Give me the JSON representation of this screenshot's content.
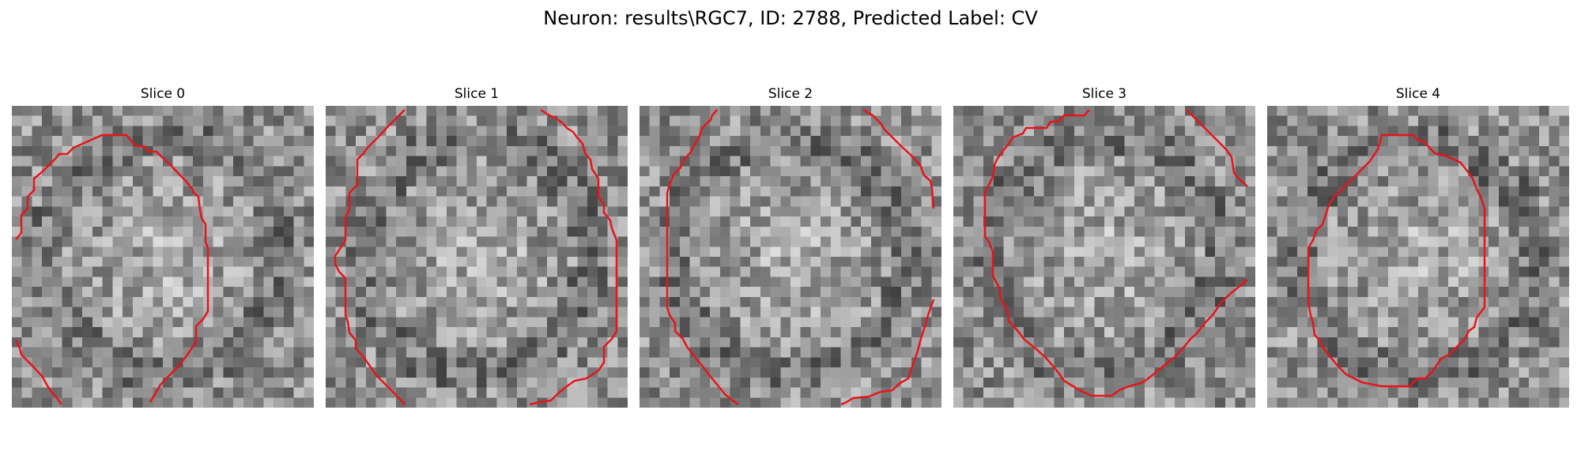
{
  "figure": {
    "title": "Neuron: results\\RGC7, ID: 2788, Predicted Label: CV"
  },
  "panels": [
    {
      "title": "Slice 0"
    },
    {
      "title": "Slice 1"
    },
    {
      "title": "Slice 2"
    },
    {
      "title": "Slice 3"
    },
    {
      "title": "Slice 4"
    }
  ],
  "colors": {
    "contour": "#e8141a",
    "background": "#ffffff"
  }
}
